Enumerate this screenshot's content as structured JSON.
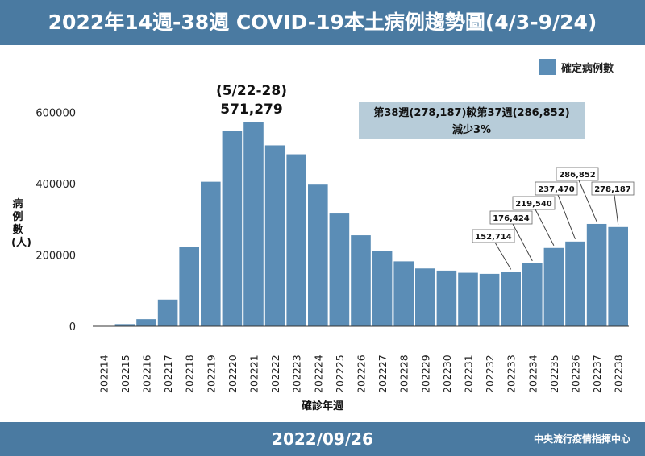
{
  "header": {
    "title": "2022年14週-38週 COVID-19本土病例趨勢圖(4/3-9/24)"
  },
  "footer": {
    "date": "2022/09/26",
    "org": "中央流行疫情指揮中心"
  },
  "colors": {
    "bar": "#5b8db6",
    "header": "#4a7aa1",
    "box": "#b7ccd9"
  },
  "peak_annotation": {
    "range": "(5/22-28)",
    "value": "571,279"
  },
  "comparison_box": {
    "line1": "第38週(278,187)較第37週(286,852)",
    "line2": "減少3%"
  },
  "chart_data": {
    "type": "bar",
    "title": "2022年14週-38週 COVID-19本土病例趨勢圖(4/3-9/24)",
    "xlabel": "確診年週",
    "ylabel": "病例數(人)",
    "legend": "確定病例數",
    "legend_position": "top-right",
    "ylim": [
      0,
      700000
    ],
    "yticks": [
      0,
      200000,
      400000,
      600000
    ],
    "ytick_labels": [
      "0",
      "200000",
      "400000",
      "600000"
    ],
    "categories": [
      "202214",
      "202215",
      "202216",
      "202217",
      "202218",
      "202219",
      "202220",
      "202221",
      "202222",
      "202223",
      "202224",
      "202225",
      "202226",
      "202227",
      "202228",
      "202229",
      "202230",
      "202231",
      "202232",
      "202233",
      "202234",
      "202235",
      "202236",
      "202237",
      "202238"
    ],
    "values": [
      300,
      6000,
      20000,
      75000,
      222000,
      405000,
      547000,
      571279,
      507000,
      482000,
      397000,
      316000,
      255000,
      210000,
      182000,
      162000,
      156000,
      150000,
      147000,
      152714,
      176424,
      219540,
      237470,
      286852,
      278187
    ],
    "callouts": [
      {
        "category": "202233",
        "label": "152,714"
      },
      {
        "category": "202234",
        "label": "176,424"
      },
      {
        "category": "202235",
        "label": "219,540"
      },
      {
        "category": "202236",
        "label": "237,470"
      },
      {
        "category": "202237",
        "label": "286,852"
      },
      {
        "category": "202238",
        "label": "278,187"
      }
    ]
  }
}
